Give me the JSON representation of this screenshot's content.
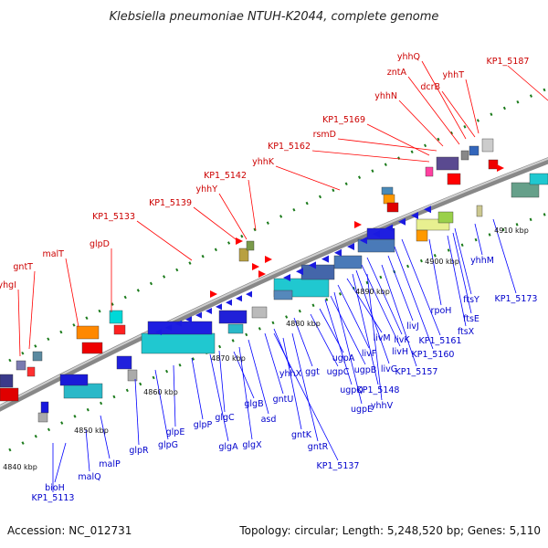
{
  "title": "Klebsiella pneumoniae NTUH-K2044, complete genome",
  "footer": {
    "accession": "Accession: NC_012731",
    "info": "Topology: circular; Length: 5,248,520 bp; Genes: 5,110"
  },
  "colors": {
    "label_top": "#cc0000",
    "label_bottom": "#0000cc",
    "line_top": "#ff0000",
    "line_bottom": "#0000ff",
    "backbone": "#808080",
    "tick_dot": "#1a7a1a"
  },
  "ticks": [
    "4840 kbp",
    "4850 kbp",
    "4860 kbp",
    "4870 kbp",
    "4880 kbp",
    "4890 kbp",
    "4900 kbp",
    "4910 kbp"
  ],
  "top_labels": [
    "yhgI",
    "gntT",
    "malT",
    "glpD",
    "KP1_5133",
    "KP1_5139",
    "yhhY",
    "KP1_5142",
    "yhhK",
    "KP1_5162",
    "rsmD",
    "KP1_5169",
    "yhhN",
    "zntA",
    "yhhQ",
    "dcrB",
    "yhhT",
    "KP1_5187"
  ],
  "bottom_labels": [
    "KP1_5113",
    "bioH",
    "malQ",
    "malP",
    "glpR",
    "glpG",
    "glpE",
    "glpP",
    "glgA",
    "glgC",
    "glgX",
    "glgB",
    "asd",
    "gntU",
    "yhhX",
    "gntK",
    "gntR",
    "KP1_5137",
    "ggt",
    "ugpC",
    "ugpA",
    "ugpQ",
    "ugpB",
    "ugpE",
    "livF",
    "livM",
    "KP1_5148",
    "livG",
    "livH",
    "livK",
    "yhhV",
    "KP1_5157",
    "livJ",
    "KP1_5160",
    "KP1_5161",
    "rpoH",
    "ftsX",
    "ftsE",
    "ftsY",
    "yhhM",
    "KP1_5173"
  ]
}
